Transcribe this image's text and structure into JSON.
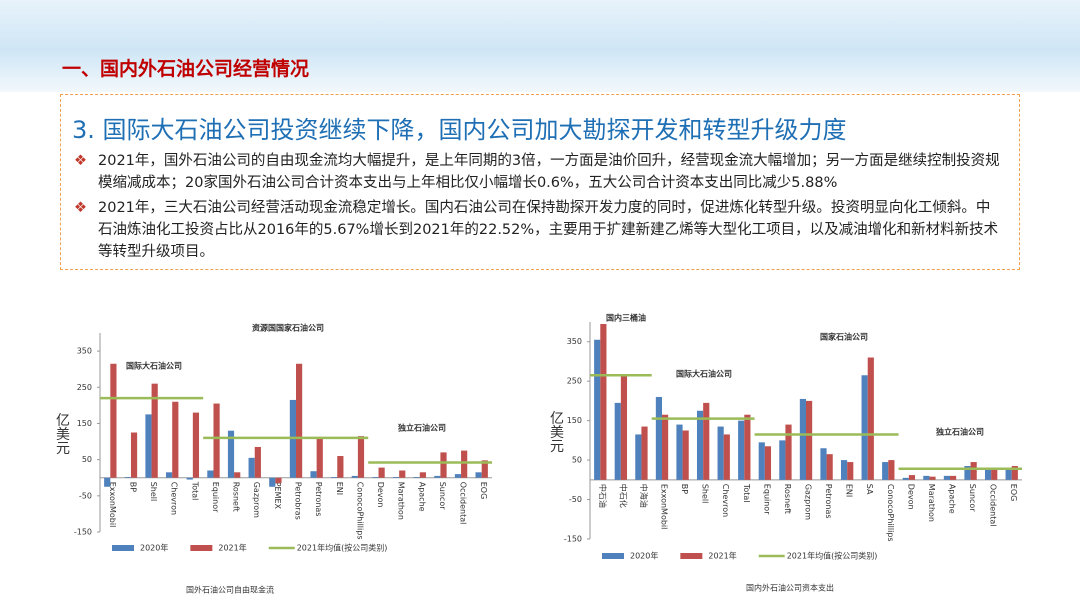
{
  "header": {
    "title": "一、国内外石油公司经营情况"
  },
  "section_title": "3. 国际大石油公司投资继续下降，国内公司加大勘探开发和转型升级力度",
  "bullets": [
    "2021年，国外石油公司的自由现金流均大幅提升，是上年同期的3倍，一方面是油价回升，经营现金流大幅增加；另一方面是继续控制投资规模缩减成本；20家国外石油公司合计资本支出与上年相比仅小幅增长0.6%，五大公司合计资本支出同比减少5.88%",
    "2021年，三大石油公司经营活动现金流稳定增长。国内石油公司在保持勘探开发力度的同时，促进炼化转型升级。投资明显向化工倾斜。中石油炼油化工投资占比从2016年的5.67%增长到2021年的22.52%，主要用于扩建新建乙烯等大型化工项目，以及减油增化和新材料新技术等转型升级项目。"
  ],
  "chart_data": [
    {
      "type": "bar",
      "title": "国外石油公司自由现金流",
      "y_label": "亿美元",
      "categories": [
        "ExxonMobil",
        "BP",
        "Shell",
        "Chevron",
        "Total",
        "Equinor",
        "Rosneft",
        "Gazprom",
        "PEMEX",
        "Petrobras",
        "Petronas",
        "ENI",
        "ConocoPhillips",
        "Devon",
        "Marathon",
        "Apache",
        "Suncor",
        "Occidental",
        "EOG"
      ],
      "series": [
        {
          "name": "2020年",
          "type": "bar",
          "color": "#4f81bd",
          "values": [
            -25,
            2,
            175,
            15,
            -5,
            20,
            130,
            55,
            -25,
            215,
            18,
            2,
            5,
            2,
            2,
            2,
            5,
            10,
            15
          ]
        },
        {
          "name": "2021年",
          "type": "bar",
          "color": "#c0504d",
          "values": [
            315,
            125,
            260,
            210,
            180,
            205,
            15,
            85,
            -15,
            315,
            110,
            60,
            115,
            28,
            20,
            15,
            70,
            75,
            48
          ]
        },
        {
          "name": "2021年均值(按公司类别)",
          "type": "line",
          "color": "#9bbb59",
          "values": [
            220,
            220,
            220,
            220,
            220,
            110,
            110,
            110,
            110,
            110,
            110,
            110,
            110,
            42,
            42,
            42,
            42,
            42,
            42
          ]
        }
      ],
      "annotations": [
        {
          "text": "国际大石油公司",
          "color": "#c0504d"
        },
        {
          "text": "资源国国家石油公司",
          "color": "#1f5fa8"
        },
        {
          "text": "独立石油公司",
          "color": "#b07800"
        }
      ],
      "ylim": [
        -150,
        400
      ],
      "yticks": [
        -150,
        -50,
        50,
        150,
        250,
        350
      ]
    },
    {
      "type": "bar",
      "title": "国内外石油公司资本支出",
      "y_label": "亿美元",
      "categories": [
        "中石油",
        "中石化",
        "中海油",
        "ExxonMobil",
        "BP",
        "Shell",
        "Chevron",
        "Total",
        "Equinor",
        "Rosneft",
        "Gazprom",
        "Petronas",
        "ENI",
        "SA",
        "ConocoPhillips",
        "Devon",
        "Marathon",
        "Apache",
        "Suncor",
        "Occidental",
        "EOG"
      ],
      "series": [
        {
          "name": "2020年",
          "type": "bar",
          "color": "#4f81bd",
          "values": [
            355,
            195,
            115,
            210,
            140,
            175,
            135,
            150,
            95,
            100,
            205,
            80,
            50,
            265,
            45,
            5,
            10,
            10,
            35,
            25,
            30
          ]
        },
        {
          "name": "2021年",
          "type": "bar",
          "color": "#c0504d",
          "values": [
            395,
            265,
            135,
            165,
            125,
            195,
            115,
            165,
            85,
            140,
            200,
            65,
            45,
            310,
            50,
            12,
            8,
            10,
            45,
            25,
            35
          ]
        },
        {
          "name": "2021年均值(按公司类别)",
          "type": "line",
          "color": "#9bbb59",
          "values": [
            265,
            265,
            265,
            155,
            155,
            155,
            155,
            155,
            115,
            115,
            115,
            115,
            115,
            115,
            115,
            28,
            28,
            28,
            28,
            28,
            28
          ]
        }
      ],
      "annotations": [
        {
          "text": "国内三桶油",
          "color": "#c0504d"
        },
        {
          "text": "国际大石油公司",
          "color": "#c0504d"
        },
        {
          "text": "国家石油公司",
          "color": "#1f5fa8"
        },
        {
          "text": "独立石油公司",
          "color": "#b07800"
        }
      ],
      "ylim": [
        -150,
        400
      ],
      "yticks": [
        -150,
        -50,
        50,
        150,
        250,
        350
      ]
    }
  ]
}
